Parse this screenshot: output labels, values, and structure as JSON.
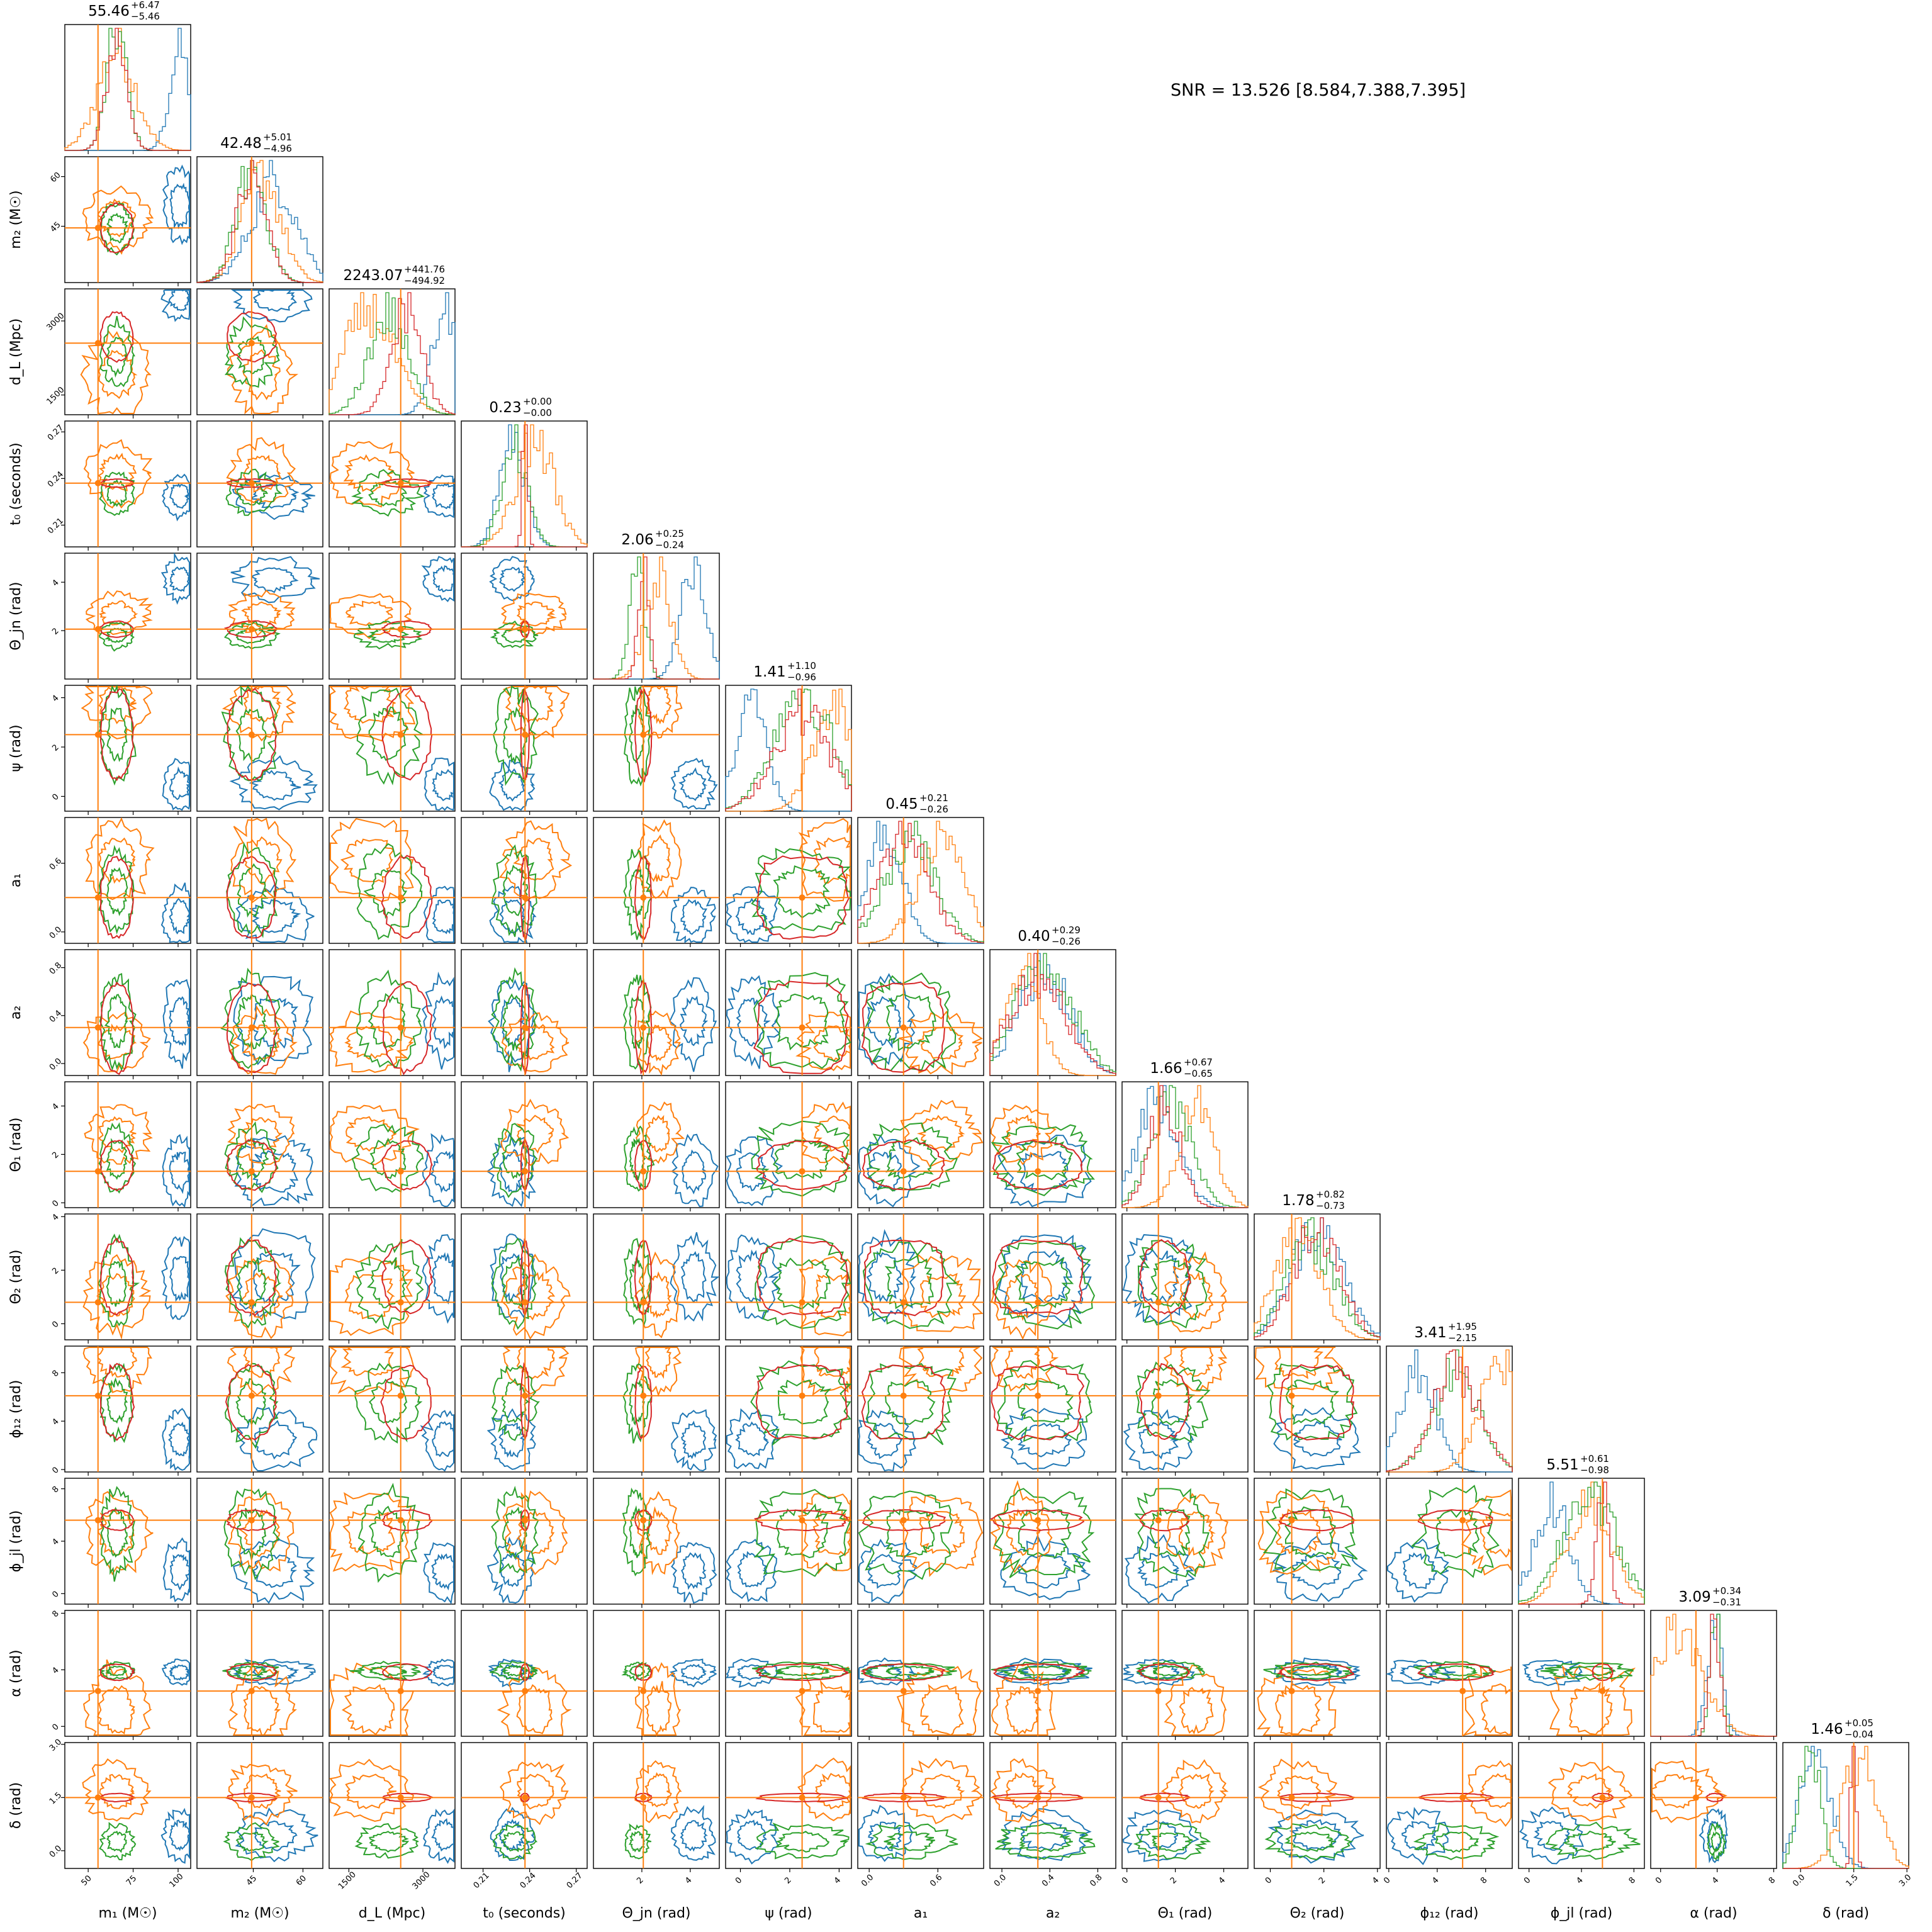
{
  "snr_label": "SNR = 13.526 [8.584,7.388,7.395]",
  "colors": {
    "blue": "#1f77b4",
    "orange": "#ff7f0e",
    "green": "#2ca02c",
    "red": "#d62728",
    "truth": "#ff7f0e"
  },
  "chart_data": {
    "type": "corner",
    "series": [
      {
        "color": "#1f77b4"
      },
      {
        "color": "#ff7f0e"
      },
      {
        "color": "#2ca02c"
      },
      {
        "color": "#d62728"
      }
    ],
    "parameters": [
      {
        "xlabel": "m₁ (M☉)",
        "ylabel": "",
        "title": "55.46",
        "err_plus": "+6.47",
        "err_minus": "−5.46",
        "range": [
          37,
          107
        ],
        "ticks": [
          50,
          75,
          100
        ],
        "tick_labels": [
          "50",
          "75",
          "100"
        ],
        "truth": 55.46
      },
      {
        "xlabel": "m₂ (M☉)",
        "ylabel": "m₂ (M☉)",
        "title": "42.48",
        "err_plus": "+5.01",
        "err_minus": "−4.96",
        "range": [
          28,
          66
        ],
        "ticks": [
          45,
          60
        ],
        "tick_labels": [
          "45",
          "60"
        ],
        "truth": 44.5
      },
      {
        "xlabel": "d_L (Mpc)",
        "ylabel": "d_L (Mpc)",
        "title": "2243.07",
        "err_plus": "+441.76",
        "err_minus": "−494.92",
        "range": [
          1100,
          3650
        ],
        "ticks": [
          1500,
          3000
        ],
        "tick_labels": [
          "1500",
          "3000"
        ],
        "truth": 2550
      },
      {
        "xlabel": "t₀ (seconds)",
        "ylabel": "t₀ (seconds)",
        "title": "0.23",
        "err_plus": "+0.00",
        "err_minus": "−0.00",
        "range": [
          0.196,
          0.277
        ],
        "ticks": [
          0.21,
          0.24,
          0.27
        ],
        "tick_labels": [
          "0.21",
          "0.24",
          "0.27"
        ],
        "truth": 0.237
      },
      {
        "xlabel": "Θ_jn (rad)",
        "ylabel": "Θ_jn (rad)",
        "title": "2.06",
        "err_plus": "+0.25",
        "err_minus": "−0.24",
        "range": [
          0,
          5.2
        ],
        "ticks": [
          2,
          4
        ],
        "tick_labels": [
          "2",
          "4"
        ],
        "truth": 2.06
      },
      {
        "xlabel": "ψ (rad)",
        "ylabel": "ψ (rad)",
        "title": "1.41",
        "err_plus": "+1.10",
        "err_minus": "−0.96",
        "range": [
          -0.6,
          4.5
        ],
        "ticks": [
          0,
          2,
          4
        ],
        "tick_labels": [
          "0",
          "2",
          "4"
        ],
        "truth": 2.5
      },
      {
        "xlabel": "a₁",
        "ylabel": "a₁",
        "title": "0.45",
        "err_plus": "+0.21",
        "err_minus": "−0.26",
        "range": [
          -0.1,
          1.0
        ],
        "ticks": [
          0.0,
          0.6
        ],
        "tick_labels": [
          "0.0",
          "0.6"
        ],
        "truth": 0.3
      },
      {
        "xlabel": "a₂",
        "ylabel": "a₂",
        "title": "0.40",
        "err_plus": "+0.29",
        "err_minus": "−0.26",
        "range": [
          -0.1,
          0.95
        ],
        "ticks": [
          0.0,
          0.4,
          0.8
        ],
        "tick_labels": [
          "0.0",
          "0.4",
          "0.8"
        ],
        "truth": 0.3
      },
      {
        "xlabel": "Θ₁ (rad)",
        "ylabel": "Θ₁ (rad)",
        "title": "1.66",
        "err_plus": "+0.67",
        "err_minus": "−0.65",
        "range": [
          -0.2,
          5.0
        ],
        "ticks": [
          0,
          2,
          4
        ],
        "tick_labels": [
          "0",
          "2",
          "4"
        ],
        "truth": 1.3
      },
      {
        "xlabel": "Θ₂ (rad)",
        "ylabel": "Θ₂ (rad)",
        "title": "1.78",
        "err_plus": "+0.82",
        "err_minus": "−0.73",
        "range": [
          -0.6,
          4.1
        ],
        "ticks": [
          0,
          2,
          4
        ],
        "tick_labels": [
          "0",
          "2",
          "4"
        ],
        "truth": 0.8
      },
      {
        "xlabel": "ϕ₁₂ (rad)",
        "ylabel": "ϕ₁₂ (rad)",
        "title": "3.41",
        "err_plus": "+1.95",
        "err_minus": "−2.15",
        "range": [
          -0.2,
          10.2
        ],
        "ticks": [
          0,
          4,
          8
        ],
        "tick_labels": [
          "0",
          "4",
          "8"
        ],
        "truth": 6.1
      },
      {
        "xlabel": "ϕ_jl (rad)",
        "ylabel": "ϕ_jl (rad)",
        "title": "5.51",
        "err_plus": "+0.61",
        "err_minus": "−0.98",
        "range": [
          -0.8,
          8.8
        ],
        "ticks": [
          0,
          4,
          8
        ],
        "tick_labels": [
          "0",
          "4",
          "8"
        ],
        "truth": 5.6
      },
      {
        "xlabel": "α (rad)",
        "ylabel": "α (rad)",
        "title": "3.09",
        "err_plus": "+0.34",
        "err_minus": "−0.31",
        "range": [
          -0.7,
          8.2
        ],
        "ticks": [
          0,
          4,
          8
        ],
        "tick_labels": [
          "0",
          "4",
          "8"
        ],
        "truth": 2.5
      },
      {
        "xlabel": "δ (rad)",
        "ylabel": "δ (rad)",
        "title": "1.46",
        "err_plus": "+0.05",
        "err_minus": "−0.04",
        "range": [
          -0.5,
          3.05
        ],
        "ticks": [
          0.0,
          1.5,
          3.0
        ],
        "tick_labels": [
          "0.0",
          "1.5",
          "3.0"
        ],
        "truth": 1.5
      }
    ]
  }
}
